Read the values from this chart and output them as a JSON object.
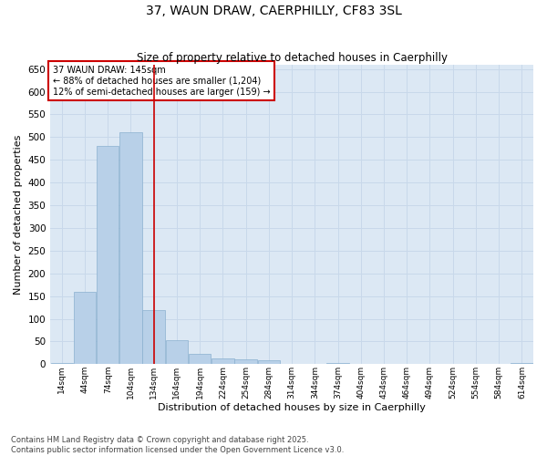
{
  "title": "37, WAUN DRAW, CAERPHILLY, CF83 3SL",
  "subtitle": "Size of property relative to detached houses in Caerphilly",
  "xlabel": "Distribution of detached houses by size in Caerphilly",
  "ylabel": "Number of detached properties",
  "footer_line1": "Contains HM Land Registry data © Crown copyright and database right 2025.",
  "footer_line2": "Contains public sector information licensed under the Open Government Licence v3.0.",
  "bins": [
    "14sqm",
    "44sqm",
    "74sqm",
    "104sqm",
    "134sqm",
    "164sqm",
    "194sqm",
    "224sqm",
    "254sqm",
    "284sqm",
    "314sqm",
    "344sqm",
    "374sqm",
    "404sqm",
    "434sqm",
    "464sqm",
    "494sqm",
    "524sqm",
    "554sqm",
    "584sqm",
    "614sqm"
  ],
  "values": [
    2,
    160,
    480,
    510,
    120,
    52,
    22,
    12,
    11,
    8,
    0,
    0,
    3,
    0,
    0,
    0,
    0,
    0,
    0,
    0,
    2
  ],
  "bar_color": "#b8d0e8",
  "bar_edge_color": "#8ab0d0",
  "grid_color": "#c8d8ea",
  "background_color": "#dce8f4",
  "annotation_text": "37 WAUN DRAW: 145sqm\n← 88% of detached houses are smaller (1,204)\n12% of semi-detached houses are larger (159) →",
  "annotation_box_color": "#ffffff",
  "annotation_box_edge": "#cc0000",
  "vline_color": "#cc0000",
  "vline_position": 4.5,
  "ylim": [
    0,
    660
  ],
  "yticks": [
    0,
    50,
    100,
    150,
    200,
    250,
    300,
    350,
    400,
    450,
    500,
    550,
    600,
    650
  ]
}
